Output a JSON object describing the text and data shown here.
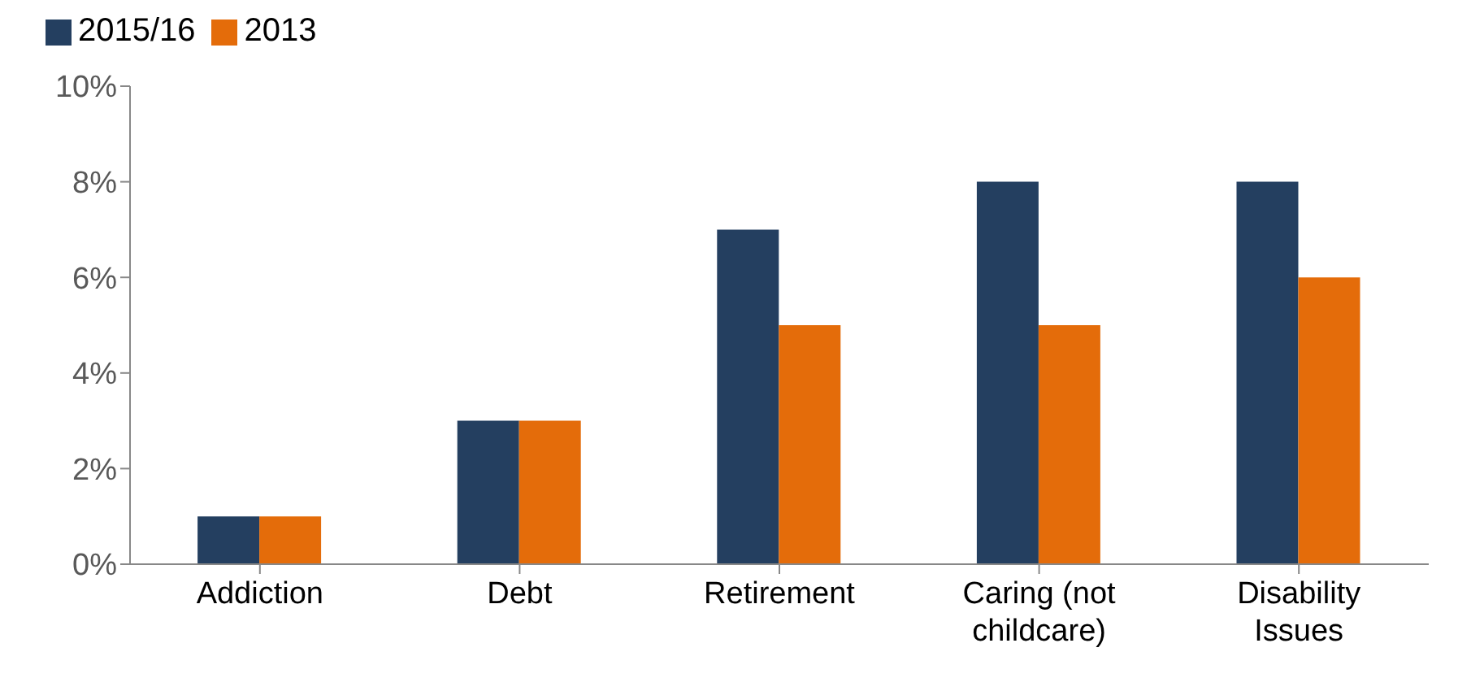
{
  "chart_data": {
    "type": "bar",
    "categories": [
      "Addiction",
      "Debt",
      "Retirement",
      "Caring (not childcare)",
      "Disability Issues"
    ],
    "series": [
      {
        "name": "2015/16",
        "color": "#243f60",
        "values": [
          1,
          3,
          7,
          8,
          8
        ]
      },
      {
        "name": "2013",
        "color": "#e46c0a",
        "values": [
          1,
          3,
          5,
          5,
          6
        ]
      }
    ],
    "ylim": [
      0,
      10
    ],
    "yticks": [
      {
        "value": 0,
        "label": "0%"
      },
      {
        "value": 2,
        "label": "2%"
      },
      {
        "value": 4,
        "label": "4%"
      },
      {
        "value": 6,
        "label": "6%"
      },
      {
        "value": 8,
        "label": "8%"
      },
      {
        "value": 10,
        "label": "10%"
      }
    ],
    "grid": false,
    "legend": "top left"
  }
}
